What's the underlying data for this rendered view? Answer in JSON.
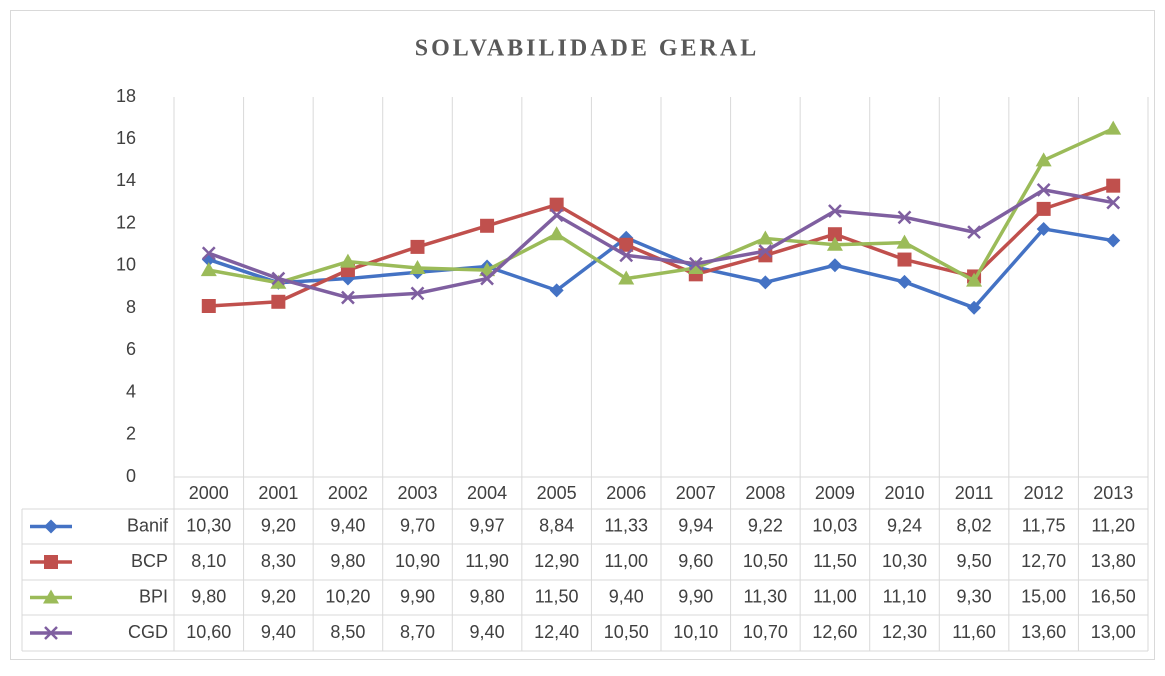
{
  "chart_data": {
    "type": "line",
    "title": "SOLVABILIDADE GERAL",
    "categories": [
      "2000",
      "2001",
      "2002",
      "2003",
      "2004",
      "2005",
      "2006",
      "2007",
      "2008",
      "2009",
      "2010",
      "2011",
      "2012",
      "2013"
    ],
    "ylim": [
      0,
      18
    ],
    "yticks": [
      0,
      2,
      4,
      6,
      8,
      10,
      12,
      14,
      16,
      18
    ],
    "series": [
      {
        "name": "Banif",
        "color": "#4472c4",
        "marker": "diamond",
        "values": [
          10.3,
          9.2,
          9.4,
          9.7,
          9.97,
          8.84,
          11.33,
          9.94,
          9.22,
          10.03,
          9.24,
          8.02,
          11.75,
          11.2
        ],
        "value_labels": [
          "10,30",
          "9,20",
          "9,40",
          "9,70",
          "9,97",
          "8,84",
          "11,33",
          "9,94",
          "9,22",
          "10,03",
          "9,24",
          "8,02",
          "11,75",
          "11,20"
        ]
      },
      {
        "name": "BCP",
        "color": "#c0504d",
        "marker": "square",
        "values": [
          8.1,
          8.3,
          9.8,
          10.9,
          11.9,
          12.9,
          11.0,
          9.6,
          10.5,
          11.5,
          10.3,
          9.5,
          12.7,
          13.8
        ],
        "value_labels": [
          "8,10",
          "8,30",
          "9,80",
          "10,90",
          "11,90",
          "12,90",
          "11,00",
          "9,60",
          "10,50",
          "11,50",
          "10,30",
          "9,50",
          "12,70",
          "13,80"
        ]
      },
      {
        "name": "BPI",
        "color": "#9bbb59",
        "marker": "triangle",
        "values": [
          9.8,
          9.2,
          10.2,
          9.9,
          9.8,
          11.5,
          9.4,
          9.9,
          11.3,
          11.0,
          11.1,
          9.3,
          15.0,
          16.5
        ],
        "value_labels": [
          "9,80",
          "9,20",
          "10,20",
          "9,90",
          "9,80",
          "11,50",
          "9,40",
          "9,90",
          "11,30",
          "11,00",
          "11,10",
          "9,30",
          "15,00",
          "16,50"
        ]
      },
      {
        "name": "CGD",
        "color": "#7f5fa0",
        "marker": "x",
        "values": [
          10.6,
          9.4,
          8.5,
          8.7,
          9.4,
          12.4,
          10.5,
          10.1,
          10.7,
          12.6,
          12.3,
          11.6,
          13.6,
          13.0
        ],
        "value_labels": [
          "10,60",
          "9,40",
          "8,50",
          "8,70",
          "9,40",
          "12,40",
          "10,50",
          "10,10",
          "10,70",
          "12,60",
          "12,30",
          "11,60",
          "13,60",
          "13,00"
        ]
      }
    ]
  }
}
